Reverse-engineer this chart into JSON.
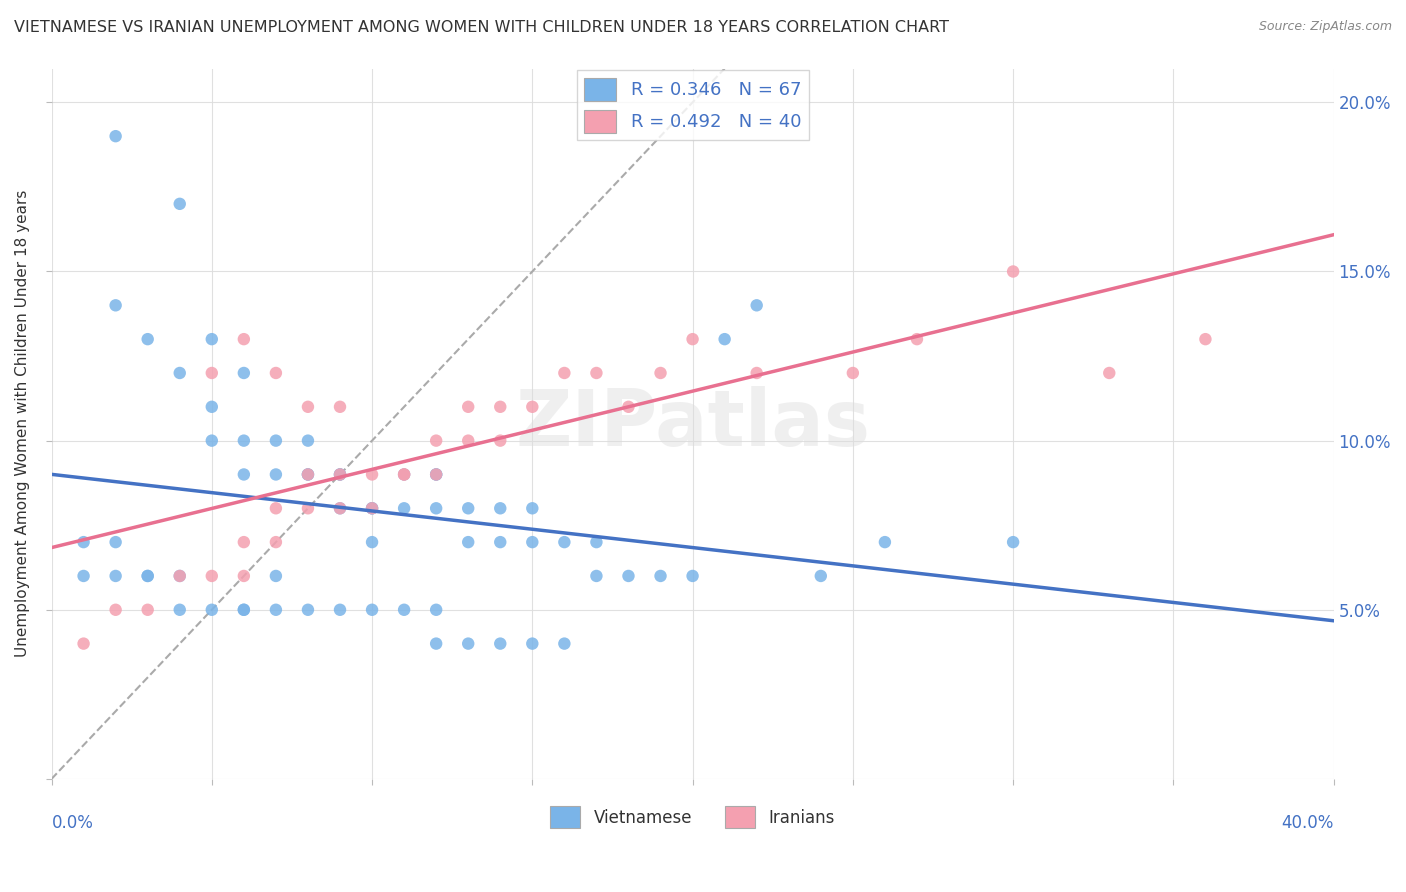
{
  "title": "VIETNAMESE VS IRANIAN UNEMPLOYMENT AMONG WOMEN WITH CHILDREN UNDER 18 YEARS CORRELATION CHART",
  "source": "Source: ZipAtlas.com",
  "ylabel": "Unemployment Among Women with Children Under 18 years",
  "xlim": [
    0.0,
    0.4
  ],
  "ylim": [
    0.0,
    0.21
  ],
  "legend_r1": "R = 0.346",
  "legend_n1": "N = 67",
  "legend_r2": "R = 0.492",
  "legend_n2": "N = 40",
  "color_vietnamese": "#7AB4E8",
  "color_iranians": "#F4A0B0",
  "color_line_vietnamese": "#4472C4",
  "color_line_iranians": "#E87090",
  "color_diagonal": "#AAAAAA",
  "watermark": "ZIPatlas",
  "vietnamese_x": [
    0.02,
    0.04,
    0.02,
    0.03,
    0.04,
    0.06,
    0.05,
    0.05,
    0.05,
    0.06,
    0.07,
    0.06,
    0.07,
    0.08,
    0.08,
    0.08,
    0.09,
    0.09,
    0.09,
    0.1,
    0.1,
    0.1,
    0.11,
    0.11,
    0.12,
    0.12,
    0.12,
    0.13,
    0.13,
    0.14,
    0.14,
    0.15,
    0.15,
    0.16,
    0.17,
    0.17,
    0.18,
    0.19,
    0.2,
    0.21,
    0.01,
    0.01,
    0.02,
    0.02,
    0.03,
    0.03,
    0.04,
    0.04,
    0.05,
    0.06,
    0.06,
    0.07,
    0.07,
    0.08,
    0.09,
    0.1,
    0.11,
    0.12,
    0.12,
    0.13,
    0.14,
    0.15,
    0.16,
    0.22,
    0.24,
    0.26,
    0.3
  ],
  "vietnamese_y": [
    0.19,
    0.17,
    0.14,
    0.13,
    0.12,
    0.12,
    0.13,
    0.11,
    0.1,
    0.09,
    0.1,
    0.1,
    0.09,
    0.09,
    0.09,
    0.1,
    0.09,
    0.09,
    0.08,
    0.08,
    0.07,
    0.08,
    0.08,
    0.09,
    0.08,
    0.09,
    0.09,
    0.08,
    0.07,
    0.07,
    0.08,
    0.08,
    0.07,
    0.07,
    0.07,
    0.06,
    0.06,
    0.06,
    0.06,
    0.13,
    0.07,
    0.06,
    0.07,
    0.06,
    0.06,
    0.06,
    0.06,
    0.05,
    0.05,
    0.05,
    0.05,
    0.05,
    0.06,
    0.05,
    0.05,
    0.05,
    0.05,
    0.04,
    0.05,
    0.04,
    0.04,
    0.04,
    0.04,
    0.14,
    0.06,
    0.07,
    0.07
  ],
  "iranians_x": [
    0.01,
    0.02,
    0.03,
    0.04,
    0.05,
    0.06,
    0.06,
    0.07,
    0.07,
    0.08,
    0.08,
    0.09,
    0.09,
    0.1,
    0.1,
    0.11,
    0.11,
    0.12,
    0.12,
    0.13,
    0.13,
    0.14,
    0.14,
    0.15,
    0.16,
    0.17,
    0.18,
    0.19,
    0.2,
    0.22,
    0.05,
    0.06,
    0.07,
    0.08,
    0.09,
    0.25,
    0.27,
    0.3,
    0.33,
    0.36
  ],
  "iranians_y": [
    0.04,
    0.05,
    0.05,
    0.06,
    0.06,
    0.06,
    0.07,
    0.07,
    0.08,
    0.08,
    0.09,
    0.08,
    0.09,
    0.08,
    0.09,
    0.09,
    0.09,
    0.09,
    0.1,
    0.1,
    0.11,
    0.1,
    0.11,
    0.11,
    0.12,
    0.12,
    0.11,
    0.12,
    0.13,
    0.12,
    0.12,
    0.13,
    0.12,
    0.11,
    0.11,
    0.12,
    0.13,
    0.15,
    0.12,
    0.13
  ],
  "background_color": "#FFFFFF",
  "plot_bg_color": "#FFFFFF",
  "grid_color": "#DDDDDD",
  "label_color": "#4472C4",
  "title_color": "#333333",
  "source_color": "#888888"
}
